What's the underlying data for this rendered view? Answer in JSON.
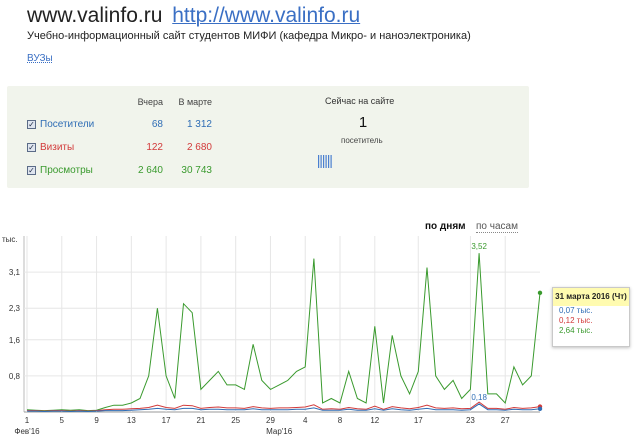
{
  "site": {
    "domain": "www.valinfo.ru",
    "url": "http://www.valinfo.ru",
    "description": "Учебно-информационный сайт студентов МИФИ (кафедра Микро- и наноэлектроника)",
    "tag": "ВУЗы"
  },
  "stats": {
    "col_yesterday": "Вчера",
    "col_month": "В марте",
    "rows": [
      {
        "label": "Посетители",
        "yesterday": "68",
        "month": "1 312",
        "color": "#2f6db5"
      },
      {
        "label": "Визиты",
        "yesterday": "122",
        "month": "2 680",
        "color": "#d23a3a"
      },
      {
        "label": "Просмотры",
        "yesterday": "2 640",
        "month": "30 743",
        "color": "#3a9a2e"
      }
    ],
    "checkbox_mark": "✓"
  },
  "now": {
    "title": "Сейчас на сайте",
    "count": "1",
    "label": "посетитель",
    "icon": "bars-icon"
  },
  "tabs": {
    "by_days": "по дням",
    "by_hours": "по часам"
  },
  "tooltip": {
    "header": "31 марта 2016 (Чт)",
    "lines": [
      {
        "text": "0,07 тыс.",
        "color": "#2f6db5"
      },
      {
        "text": "0,12 тыс.",
        "color": "#d23a3a"
      },
      {
        "text": "2,64 тыс.",
        "color": "#3a9a2e"
      }
    ]
  },
  "chart_data": {
    "type": "line",
    "ylabel": "тыс.",
    "ylim": [
      0,
      3.9
    ],
    "yticks": [
      "3,1",
      "2,3",
      "1,6",
      "0,8"
    ],
    "ytick_values": [
      3.1,
      2.3,
      1.6,
      0.8
    ],
    "x_ticks": [
      {
        "label": "1",
        "index": 0
      },
      {
        "label": "5",
        "index": 4
      },
      {
        "label": "9",
        "index": 8
      },
      {
        "label": "13",
        "index": 12
      },
      {
        "label": "17",
        "index": 16
      },
      {
        "label": "21",
        "index": 20
      },
      {
        "label": "25",
        "index": 24
      },
      {
        "label": "29",
        "index": 28
      },
      {
        "label": "4",
        "index": 32
      },
      {
        "label": "8",
        "index": 36
      },
      {
        "label": "12",
        "index": 40
      },
      {
        "label": "17",
        "index": 45
      },
      {
        "label": "23",
        "index": 51
      },
      {
        "label": "27",
        "index": 55
      }
    ],
    "month_labels": [
      {
        "label": "Фев'16",
        "index": 0
      },
      {
        "label": "Мар'16",
        "index": 29
      }
    ],
    "series": [
      {
        "name": "Просмотры",
        "color": "#3a9a2e",
        "values": [
          0.05,
          0.04,
          0.03,
          0.04,
          0.05,
          0.04,
          0.05,
          0.03,
          0.04,
          0.1,
          0.15,
          0.15,
          0.2,
          0.3,
          0.8,
          2.3,
          0.8,
          0.3,
          2.4,
          2.2,
          0.5,
          0.7,
          0.9,
          0.6,
          0.6,
          0.5,
          1.5,
          0.7,
          0.5,
          0.6,
          0.7,
          0.9,
          1.0,
          3.4,
          0.2,
          0.3,
          0.2,
          0.9,
          0.3,
          0.2,
          1.9,
          0.2,
          1.7,
          0.8,
          0.4,
          0.9,
          3.2,
          0.8,
          0.5,
          0.7,
          0.3,
          0.5,
          3.52,
          0.4,
          0.4,
          0.2,
          1.0,
          0.6,
          0.8,
          2.64
        ]
      },
      {
        "name": "Визиты",
        "color": "#d23a3a",
        "values": [
          0.03,
          0.03,
          0.02,
          0.03,
          0.03,
          0.02,
          0.03,
          0.02,
          0.03,
          0.05,
          0.06,
          0.06,
          0.07,
          0.08,
          0.1,
          0.15,
          0.1,
          0.08,
          0.15,
          0.14,
          0.08,
          0.1,
          0.11,
          0.09,
          0.09,
          0.08,
          0.12,
          0.09,
          0.08,
          0.09,
          0.09,
          0.1,
          0.11,
          0.16,
          0.06,
          0.07,
          0.06,
          0.1,
          0.07,
          0.06,
          0.13,
          0.06,
          0.12,
          0.09,
          0.07,
          0.1,
          0.15,
          0.09,
          0.08,
          0.09,
          0.07,
          0.08,
          0.22,
          0.08,
          0.08,
          0.06,
          0.1,
          0.08,
          0.09,
          0.12
        ]
      },
      {
        "name": "Посетители",
        "color": "#2f6db5",
        "values": [
          0.02,
          0.02,
          0.01,
          0.02,
          0.02,
          0.01,
          0.02,
          0.01,
          0.02,
          0.03,
          0.03,
          0.03,
          0.04,
          0.05,
          0.06,
          0.08,
          0.06,
          0.05,
          0.08,
          0.08,
          0.05,
          0.06,
          0.06,
          0.05,
          0.05,
          0.05,
          0.07,
          0.05,
          0.05,
          0.05,
          0.05,
          0.06,
          0.06,
          0.09,
          0.04,
          0.04,
          0.04,
          0.06,
          0.04,
          0.04,
          0.07,
          0.04,
          0.07,
          0.05,
          0.04,
          0.06,
          0.08,
          0.05,
          0.05,
          0.05,
          0.04,
          0.05,
          0.18,
          0.05,
          0.05,
          0.04,
          0.06,
          0.05,
          0.05,
          0.07
        ]
      }
    ],
    "annotations": [
      {
        "text": "3,52",
        "index": 52,
        "value": 3.52,
        "color": "#3a9a2e"
      },
      {
        "text": "0,18",
        "index": 52,
        "value": 0.18,
        "color": "#2f6db5"
      }
    ],
    "grid": true
  }
}
